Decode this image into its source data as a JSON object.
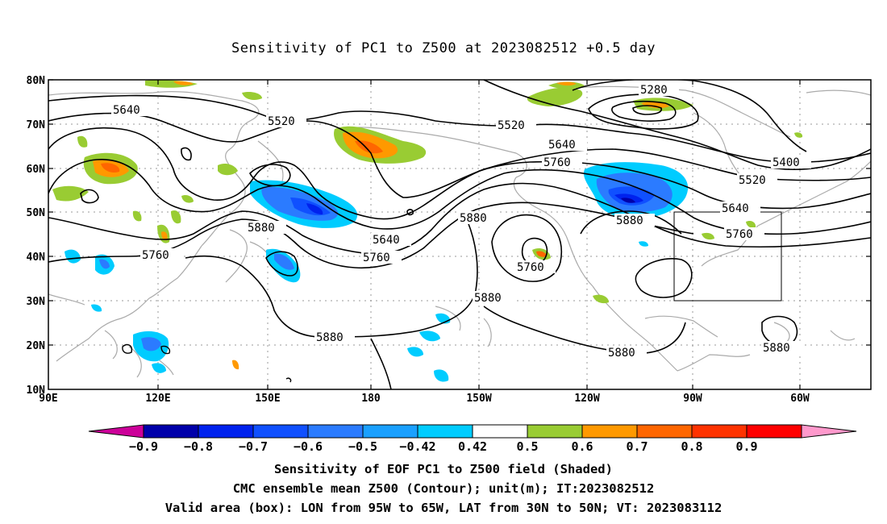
{
  "title": "Sensitivity of PC1 to Z500 at 2023082512 +0.5 day",
  "lat_labels": [
    "80N",
    "70N",
    "60N",
    "50N",
    "40N",
    "30N",
    "20N",
    "10N"
  ],
  "lon_labels": [
    "90E",
    "120E",
    "150E",
    "180",
    "150W",
    "120W",
    "90W",
    "60W"
  ],
  "contour_labels": [
    "5640",
    "5520",
    "5280",
    "5520",
    "5640",
    "5400",
    "5760",
    "5520",
    "5880",
    "5640",
    "5880",
    "5640",
    "5760",
    "5760",
    "5880",
    "5760",
    "5760",
    "5880",
    "5880",
    "5880",
    "5880"
  ],
  "colorbar": {
    "labels": [
      "-0.9",
      "-0.8",
      "-0.7",
      "-0.6",
      "-0.5",
      "-0.42",
      "0.42",
      "0.5",
      "0.6",
      "0.7",
      "0.8",
      "0.9"
    ],
    "colors": [
      "#cc0099",
      "#0000aa",
      "#0022ee",
      "#1050ff",
      "#2b7bff",
      "#1aa0ff",
      "#00ccff",
      "#ffffff",
      "#99cc33",
      "#ff9900",
      "#ff6600",
      "#ff3300",
      "#ff0000",
      "#ff99cc"
    ]
  },
  "captions": [
    "Sensitivity of EOF PC1 to Z500 field (Shaded)",
    "CMC ensemble mean Z500 (Contour); unit(m); IT:2023082512",
    "Valid area (box): LON from 95W to 65W, LAT from 30N to 50N; VT: 2023083112"
  ]
}
